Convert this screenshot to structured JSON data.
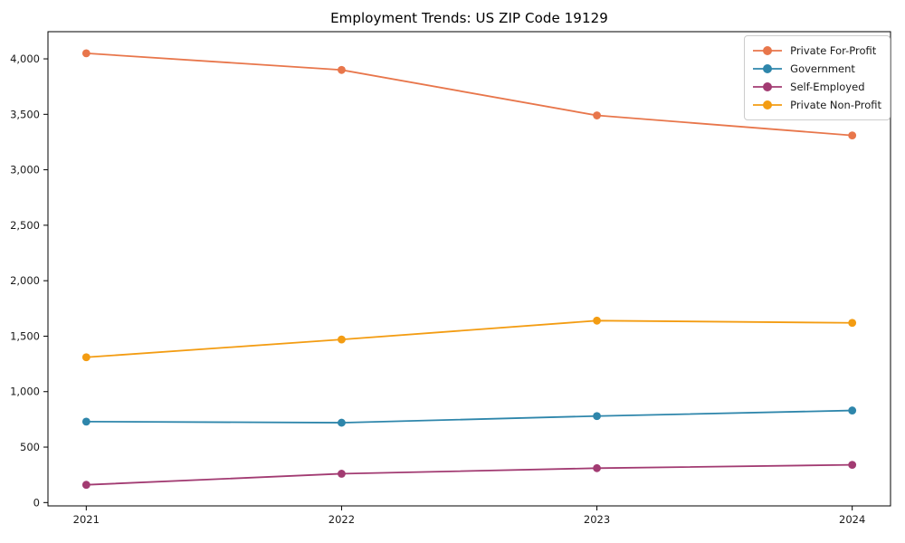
{
  "figure": {
    "background": "#ffffff"
  },
  "chart_data": {
    "type": "line",
    "title": "Employment Trends: US ZIP Code 19129",
    "categories": [
      "2021",
      "2022",
      "2023",
      "2024"
    ],
    "series": [
      {
        "name": "Private For-Profit",
        "color": "#E8764B",
        "values": [
          4050,
          3900,
          3490,
          3310
        ]
      },
      {
        "name": "Government",
        "color": "#2E86AB",
        "values": [
          730,
          720,
          780,
          830
        ]
      },
      {
        "name": "Self-Employed",
        "color": "#A23B72",
        "values": [
          160,
          260,
          310,
          340
        ]
      },
      {
        "name": "Private Non-Profit",
        "color": "#F39C12",
        "values": [
          1310,
          1470,
          1640,
          1620
        ]
      }
    ],
    "xlabel": "",
    "ylabel": "",
    "ylim": [
      -30,
      4245
    ],
    "yticks": [
      0,
      500,
      1000,
      1500,
      2000,
      2500,
      3000,
      3500,
      4000
    ],
    "grid": false,
    "legend_position": "upper right",
    "marker": "circle",
    "axis_color": "#000000",
    "text_color": "#1a1a1a",
    "legend_border_color": "#cccccc"
  }
}
